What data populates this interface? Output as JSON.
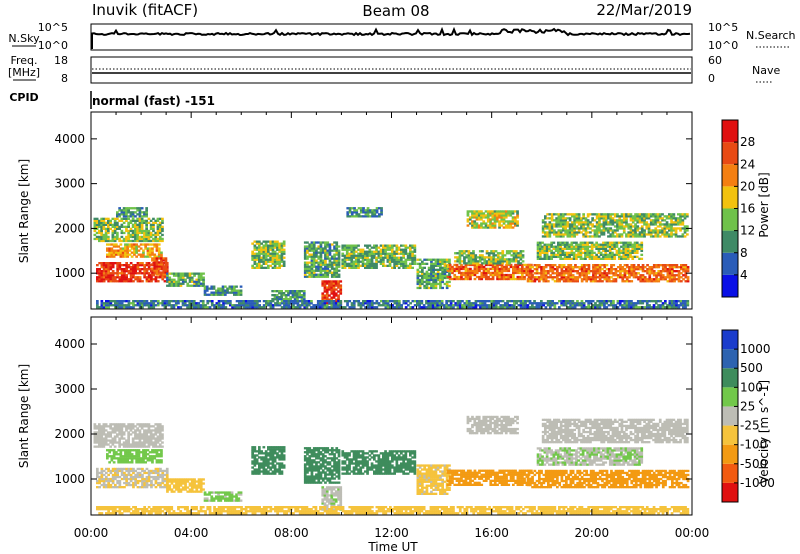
{
  "header": {
    "station": "Inuvik (fitACF)",
    "beam": "Beam 08",
    "date": "22/Mar/2019"
  },
  "top_panels": {
    "nsky": {
      "label": "N.Sky",
      "ticks": [
        "10^5",
        "10^0"
      ],
      "right_ticks": [
        "10^5",
        "10^0"
      ],
      "right_label": "N.Search"
    },
    "freq": {
      "label_line1": "Freq.",
      "label_line2": "[MHz]",
      "ticks": [
        "18",
        "8"
      ],
      "right_ticks": [
        "60",
        "0"
      ],
      "right_label": "Nave"
    },
    "cpid": {
      "label": "CPID",
      "value": "normal (fast) -151"
    }
  },
  "colors": {
    "power": [
      "#0a10e6",
      "#2a5cb8",
      "#3f8a66",
      "#6fc24a",
      "#f2c20e",
      "#f47f11",
      "#e84a14",
      "#e01010"
    ],
    "velocity": [
      "#e01010",
      "#f25a10",
      "#f39a12",
      "#f5c33c",
      "#bdbdb5",
      "#72c84a",
      "#3e8c5c",
      "#2d63b0",
      "#1a3ccc"
    ]
  },
  "chart_data": [
    {
      "type": "heatmap",
      "panel": "power",
      "ylabel": "Slant Range [km]",
      "xlabel": "",
      "y_ticks": [
        1000,
        2000,
        3000,
        4000
      ],
      "ylim": [
        200,
        4600
      ],
      "x_ticks": [
        "00:00",
        "04:00",
        "08:00",
        "12:00",
        "16:00",
        "20:00",
        "00:00"
      ],
      "xlim_hours": [
        0,
        24
      ],
      "colorbar": {
        "label": "Power [dB]",
        "ticks": [
          "4",
          "8",
          "12",
          "16",
          "20",
          "24",
          "28"
        ],
        "range": [
          0,
          32
        ]
      },
      "regions": [
        {
          "t": [
            0.2,
            3.0
          ],
          "r": [
            800,
            1250
          ],
          "v": 28
        },
        {
          "t": [
            0.6,
            2.8
          ],
          "r": [
            1350,
            1650
          ],
          "v": 20
        },
        {
          "t": [
            2.4,
            3.0
          ],
          "r": [
            950,
            1350
          ],
          "v": 26
        },
        {
          "t": [
            0.1,
            2.8
          ],
          "r": [
            1700,
            2200
          ],
          "v": 14
        },
        {
          "t": [
            1.0,
            2.2
          ],
          "r": [
            2250,
            2450
          ],
          "v": 10
        },
        {
          "t": [
            3.0,
            4.5
          ],
          "r": [
            700,
            1000
          ],
          "v": 12
        },
        {
          "t": [
            4.5,
            6.0
          ],
          "r": [
            500,
            700
          ],
          "v": 10
        },
        {
          "t": [
            6.4,
            7.7
          ],
          "r": [
            1100,
            1700
          ],
          "v": 14
        },
        {
          "t": [
            7.2,
            8.5
          ],
          "r": [
            400,
            600
          ],
          "v": 10
        },
        {
          "t": [
            8.5,
            9.9
          ],
          "r": [
            900,
            1700
          ],
          "v": 12
        },
        {
          "t": [
            9.2,
            10.0
          ],
          "r": [
            300,
            800
          ],
          "v": 28
        },
        {
          "t": [
            10.2,
            11.6
          ],
          "r": [
            2250,
            2450
          ],
          "v": 10
        },
        {
          "t": [
            10.0,
            12.9
          ],
          "r": [
            1100,
            1600
          ],
          "v": 13
        },
        {
          "t": [
            13.0,
            14.3
          ],
          "r": [
            650,
            1300
          ],
          "v": 12
        },
        {
          "t": [
            14.2,
            17.6
          ],
          "r": [
            850,
            1200
          ],
          "v": 24
        },
        {
          "t": [
            14.5,
            17.2
          ],
          "r": [
            1200,
            1500
          ],
          "v": 14
        },
        {
          "t": [
            15.0,
            17.0
          ],
          "r": [
            2000,
            2400
          ],
          "v": 16
        },
        {
          "t": [
            17.4,
            23.8
          ],
          "r": [
            800,
            1200
          ],
          "v": 24
        },
        {
          "t": [
            17.8,
            22.0
          ],
          "r": [
            1300,
            1700
          ],
          "v": 14
        },
        {
          "t": [
            18.0,
            23.8
          ],
          "r": [
            1800,
            2300
          ],
          "v": 14
        },
        {
          "t": [
            0.2,
            23.8
          ],
          "r": [
            220,
            380
          ],
          "v": 8
        }
      ]
    },
    {
      "type": "heatmap",
      "panel": "velocity",
      "ylabel": "Slant Range [km]",
      "xlabel": "Time UT",
      "y_ticks": [
        1000,
        2000,
        3000,
        4000
      ],
      "ylim": [
        200,
        4600
      ],
      "x_ticks": [
        "00:00",
        "04:00",
        "08:00",
        "12:00",
        "16:00",
        "20:00",
        "00:00"
      ],
      "xlim_hours": [
        0,
        24
      ],
      "colorbar": {
        "label": "Velocity [m s^-1]",
        "ticks": [
          "1000",
          "500",
          "100",
          "25",
          "-25",
          "-100",
          "-500",
          "-1000"
        ]
      },
      "regions": [
        {
          "t": [
            0.2,
            3.0
          ],
          "r": [
            800,
            1250
          ],
          "v": -20
        },
        {
          "t": [
            0.6,
            2.8
          ],
          "r": [
            1350,
            1650
          ],
          "v": 60
        },
        {
          "t": [
            0.1,
            2.8
          ],
          "r": [
            1700,
            2200
          ],
          "v": 5
        },
        {
          "t": [
            3.0,
            4.5
          ],
          "r": [
            700,
            1000
          ],
          "v": -60
        },
        {
          "t": [
            4.5,
            6.0
          ],
          "r": [
            500,
            700
          ],
          "v": 40
        },
        {
          "t": [
            6.4,
            7.7
          ],
          "r": [
            1100,
            1700
          ],
          "v": 200
        },
        {
          "t": [
            8.5,
            9.9
          ],
          "r": [
            900,
            1700
          ],
          "v": 250
        },
        {
          "t": [
            9.2,
            10.0
          ],
          "r": [
            300,
            800
          ],
          "v": 10
        },
        {
          "t": [
            10.0,
            12.9
          ],
          "r": [
            1100,
            1600
          ],
          "v": 250
        },
        {
          "t": [
            13.0,
            14.3
          ],
          "r": [
            650,
            1300
          ],
          "v": -40
        },
        {
          "t": [
            14.2,
            17.6
          ],
          "r": [
            850,
            1200
          ],
          "v": -300
        },
        {
          "t": [
            15.0,
            17.0
          ],
          "r": [
            2000,
            2400
          ],
          "v": 5
        },
        {
          "t": [
            17.4,
            23.8
          ],
          "r": [
            800,
            1200
          ],
          "v": -300
        },
        {
          "t": [
            17.8,
            22.0
          ],
          "r": [
            1300,
            1700
          ],
          "v": 20
        },
        {
          "t": [
            18.0,
            23.8
          ],
          "r": [
            1800,
            2300
          ],
          "v": 0
        },
        {
          "t": [
            0.2,
            23.8
          ],
          "r": [
            220,
            380
          ],
          "v": -60
        }
      ]
    }
  ]
}
